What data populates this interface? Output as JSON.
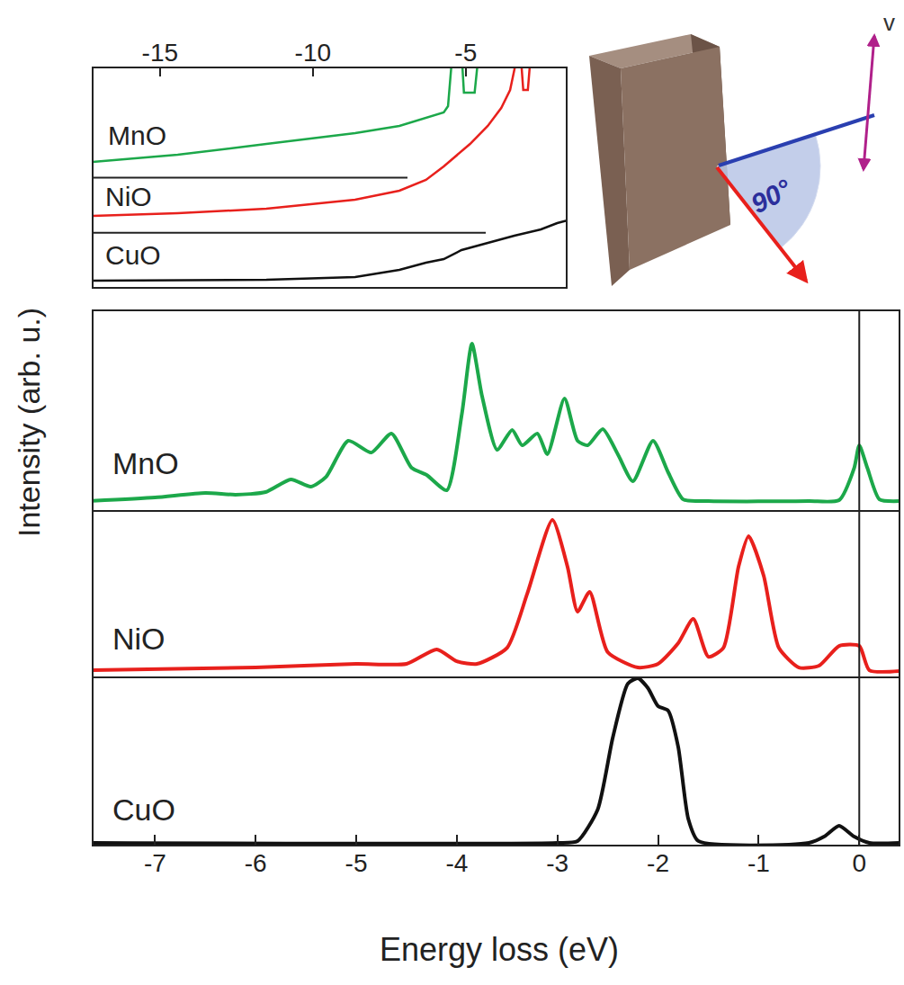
{
  "chart_data": [
    {
      "type": "line",
      "x_label": "Energy loss (eV)",
      "y_label": "Intensity (arb. u.)",
      "xlim": [
        -7.62,
        0.4
      ],
      "xticks": [
        -7,
        -6,
        -5,
        -4,
        -3,
        -2,
        -1,
        0
      ],
      "tick_labels": "x",
      "vline": 0,
      "series": [
        {
          "name": "MnO",
          "color": "#1ca84a",
          "line_style": "solid",
          "ylim": [
            0,
            1
          ],
          "x": [
            -7.62,
            -7,
            -6.5,
            -6.2,
            -5.9,
            -5.65,
            -5.45,
            -5.3,
            -5.08,
            -4.85,
            -4.65,
            -4.45,
            -4.3,
            -4.1,
            -3.95,
            -3.85,
            -3.75,
            -3.6,
            -3.45,
            -3.35,
            -3.2,
            -3.1,
            -2.93,
            -2.8,
            -2.7,
            -2.55,
            -2.4,
            -2.25,
            -2.05,
            -1.9,
            -1.75,
            -1.5,
            -0.5,
            -0.2,
            -0.05,
            0,
            0.08,
            0.2,
            0.4
          ],
          "values": [
            0.05,
            0.067,
            0.09,
            0.081,
            0.094,
            0.157,
            0.121,
            0.17,
            0.35,
            0.291,
            0.386,
            0.215,
            0.179,
            0.103,
            0.484,
            0.834,
            0.574,
            0.305,
            0.404,
            0.327,
            0.386,
            0.283,
            0.561,
            0.35,
            0.327,
            0.408,
            0.283,
            0.148,
            0.35,
            0.193,
            0.058,
            0.049,
            0.049,
            0.054,
            0.215,
            0.327,
            0.215,
            0.058,
            0.049
          ]
        },
        {
          "name": "NiO",
          "color": "#e8201c",
          "line_style": "solid",
          "ylim": [
            0,
            1
          ],
          "x": [
            -7.62,
            -6,
            -5,
            -4.5,
            -4.2,
            -4.0,
            -3.8,
            -3.5,
            -3.3,
            -3.05,
            -2.9,
            -2.8,
            -2.68,
            -2.5,
            -2.2,
            -2.0,
            -1.8,
            -1.65,
            -1.5,
            -1.35,
            -1.2,
            -1.1,
            -0.95,
            -0.8,
            -0.6,
            -0.4,
            -0.2,
            0,
            0.1,
            0.4
          ],
          "values": [
            0.043,
            0.059,
            0.081,
            0.081,
            0.168,
            0.097,
            0.081,
            0.178,
            0.503,
            0.946,
            0.665,
            0.395,
            0.514,
            0.151,
            0.059,
            0.081,
            0.205,
            0.351,
            0.124,
            0.178,
            0.665,
            0.849,
            0.611,
            0.178,
            0.059,
            0.07,
            0.189,
            0.189,
            0.043,
            0.038
          ]
        },
        {
          "name": "CuO",
          "color": "#111111",
          "line_style": "solid",
          "ylim": [
            0,
            1
          ],
          "x": [
            -7.62,
            -3,
            -2.8,
            -2.6,
            -2.45,
            -2.3,
            -2.2,
            -2.1,
            -2.0,
            -1.9,
            -1.8,
            -1.7,
            -1.6,
            -0.5,
            -0.35,
            -0.2,
            -0.05,
            0.1,
            0.4
          ],
          "values": [
            0.016,
            0.016,
            0.027,
            0.214,
            0.642,
            0.963,
            0.995,
            0.936,
            0.829,
            0.802,
            0.588,
            0.16,
            0.027,
            0.016,
            0.053,
            0.118,
            0.053,
            0.016,
            0.016
          ]
        }
      ]
    },
    {
      "type": "line",
      "xlim": [
        -17.2,
        -1.7
      ],
      "xticks": [
        -15,
        -10,
        -5
      ],
      "tick_labels": "x",
      "series": [
        {
          "name": "MnO",
          "color": "#1ca84a",
          "line_style": "solid",
          "ylim": [
            -2,
            2
          ],
          "x": [
            -17.2,
            -14.42,
            -11.52,
            -8.62,
            -7.17,
            -5.72,
            -5.58,
            -5.43,
            -5.14,
            -5.06,
            -4.71,
            -4.57
          ],
          "values": [
            0.286,
            0.416,
            0.612,
            0.808,
            0.939,
            1.184,
            1.298,
            2.3,
            2.3,
            1.543,
            1.543,
            2.3
          ]
        },
        {
          "name": "NiO",
          "color": "#e8201c",
          "line_style": "solid",
          "ylim": [
            -1,
            3
          ],
          "x": [
            -17.2,
            -14.42,
            -11.52,
            -8.62,
            -7.17,
            -6.3,
            -5.72,
            -4.86,
            -4.28,
            -3.84,
            -3.55,
            -3.32,
            -3.2,
            -3.12,
            -2.97,
            -2.88
          ],
          "values": [
            0.306,
            0.355,
            0.437,
            0.6,
            0.763,
            0.959,
            1.204,
            1.612,
            1.939,
            2.265,
            2.592,
            3.2,
            3.2,
            2.592,
            2.592,
            3.2
          ]
        },
        {
          "name": "CuO",
          "color": "#111111",
          "line_style": "solid",
          "ylim": [
            0,
            4
          ],
          "x": [
            -17.2,
            -11.52,
            -8.62,
            -7.17,
            -6.3,
            -5.72,
            -5.14,
            -4.28,
            -3.41,
            -2.54,
            -2.01,
            -1.7
          ],
          "values": [
            0.131,
            0.147,
            0.196,
            0.327,
            0.457,
            0.522,
            0.686,
            0.816,
            0.947,
            1.061,
            1.176,
            1.22
          ]
        }
      ]
    }
  ],
  "diagram": {
    "angle_label": "90°",
    "polarization_label": "v"
  }
}
